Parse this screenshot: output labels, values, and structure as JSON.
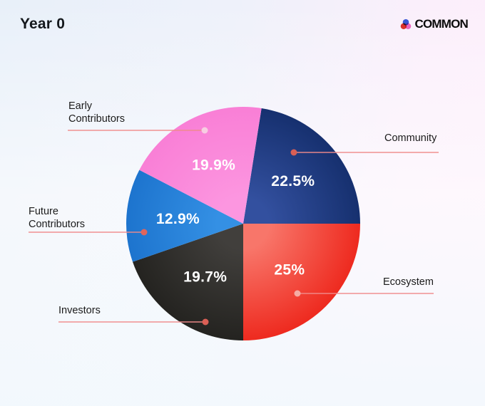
{
  "header": {
    "title": "Year 0",
    "brand": "COMMON",
    "brand_icon_colors": {
      "top": "#3a57d6",
      "left": "#e0352c",
      "right": "#ef6cc0"
    }
  },
  "chart_data": {
    "type": "pie",
    "title": "Year 0",
    "start_angle_deg": 9,
    "direction": "clockwise",
    "legend_position": "callout-labels",
    "leader_line_color": "#ef8a8a",
    "value_label_color": "#ffffff",
    "slices": [
      {
        "label": "Community",
        "value": 22.5,
        "display": "22.5%",
        "color_inner": "#33509f",
        "color_outer": "#16306f",
        "dot_color": "#d95f55"
      },
      {
        "label": "Ecosystem",
        "value": 25,
        "display": "25%",
        "color_inner": "#f8766a",
        "color_outer": "#ee2a1f",
        "dot_color": "#f5aba4"
      },
      {
        "label": "Investors",
        "value": 19.7,
        "display": "19.7%",
        "color_inner": "#413f3c",
        "color_outer": "#242320",
        "dot_color": "#db5f55"
      },
      {
        "label": "Future Contributors",
        "value": 12.9,
        "display": "12.9%",
        "color_inner": "#3490e4",
        "color_outer": "#1d74ce",
        "dot_color": "#e0655c"
      },
      {
        "label": "Early Contributors",
        "value": 19.9,
        "display": "19.9%",
        "color_inner": "#fc96e0",
        "color_outer": "#f97fd6",
        "dot_color": "#f7cde2"
      }
    ],
    "background_colors": [
      "#e8f0f9",
      "#fdeefb",
      "#f3f9fd"
    ]
  }
}
